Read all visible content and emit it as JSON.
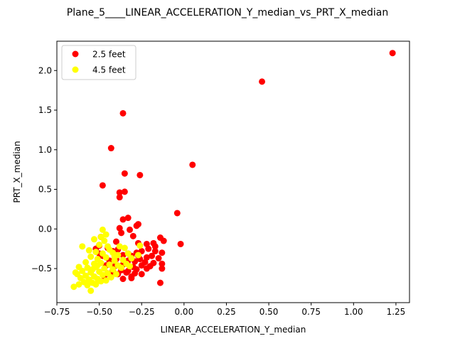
{
  "chart_data": {
    "type": "scatter",
    "title": "Plane_5____LINEAR_ACCELERATION_Y_median_vs_PRT_X_median",
    "xlabel": "LINEAR_ACCELERATION_Y_median",
    "ylabel": "PRT_X_median",
    "xlim": [
      -0.75,
      1.33
    ],
    "ylim": [
      -0.93,
      2.37
    ],
    "x_ticks": [
      -0.75,
      -0.5,
      -0.25,
      0.0,
      0.25,
      0.5,
      0.75,
      1.0,
      1.25
    ],
    "x_tick_labels": [
      "−0.75",
      "−0.50",
      "−0.25",
      "0.00",
      "0.25",
      "0.50",
      "0.75",
      "1.00",
      "1.25"
    ],
    "y_ticks": [
      -0.5,
      0.0,
      0.5,
      1.0,
      1.5,
      2.0
    ],
    "y_tick_labels": [
      "−0.5",
      "0.0",
      "0.5",
      "1.0",
      "1.5",
      "2.0"
    ],
    "grid": false,
    "legend_position": "top-left",
    "series": [
      {
        "name": "2.5 feet",
        "color": "#ff0000",
        "points": [
          [
            1.23,
            2.22
          ],
          [
            0.46,
            1.86
          ],
          [
            -0.36,
            1.46
          ],
          [
            -0.43,
            1.02
          ],
          [
            0.05,
            0.81
          ],
          [
            -0.35,
            0.7
          ],
          [
            -0.26,
            0.68
          ],
          [
            -0.48,
            0.55
          ],
          [
            -0.35,
            0.47
          ],
          [
            -0.38,
            0.46
          ],
          [
            -0.38,
            0.4
          ],
          [
            -0.04,
            0.2
          ],
          [
            -0.33,
            0.14
          ],
          [
            -0.36,
            0.12
          ],
          [
            -0.27,
            0.06
          ],
          [
            -0.28,
            0.04
          ],
          [
            -0.38,
            0.01
          ],
          [
            -0.32,
            -0.01
          ],
          [
            -0.37,
            -0.05
          ],
          [
            -0.3,
            -0.09
          ],
          [
            -0.02,
            -0.19
          ],
          [
            -0.14,
            -0.11
          ],
          [
            -0.12,
            -0.15
          ],
          [
            -0.18,
            -0.18
          ],
          [
            -0.22,
            -0.19
          ],
          [
            -0.4,
            -0.16
          ],
          [
            -0.49,
            -0.1
          ],
          [
            -0.27,
            -0.18
          ],
          [
            -0.25,
            -0.28
          ],
          [
            -0.17,
            -0.22
          ],
          [
            -0.21,
            -0.25
          ],
          [
            -0.17,
            -0.28
          ],
          [
            -0.13,
            -0.3
          ],
          [
            -0.28,
            -0.3
          ],
          [
            -0.33,
            -0.31
          ],
          [
            -0.39,
            -0.26
          ],
          [
            -0.42,
            -0.28
          ],
          [
            -0.45,
            -0.24
          ],
          [
            -0.5,
            -0.21
          ],
          [
            -0.52,
            -0.25
          ],
          [
            -0.31,
            -0.34
          ],
          [
            -0.36,
            -0.33
          ],
          [
            -0.22,
            -0.36
          ],
          [
            -0.26,
            -0.38
          ],
          [
            -0.19,
            -0.34
          ],
          [
            -0.15,
            -0.37
          ],
          [
            -0.4,
            -0.38
          ],
          [
            -0.44,
            -0.4
          ],
          [
            -0.48,
            -0.34
          ],
          [
            -0.33,
            -0.4
          ],
          [
            -0.29,
            -0.41
          ],
          [
            -0.23,
            -0.42
          ],
          [
            -0.18,
            -0.43
          ],
          [
            -0.13,
            -0.44
          ],
          [
            -0.25,
            -0.46
          ],
          [
            -0.2,
            -0.47
          ],
          [
            -0.36,
            -0.45
          ],
          [
            -0.41,
            -0.47
          ],
          [
            -0.46,
            -0.46
          ],
          [
            -0.3,
            -0.48
          ],
          [
            -0.13,
            -0.5
          ],
          [
            -0.22,
            -0.5
          ],
          [
            -0.37,
            -0.52
          ],
          [
            -0.33,
            -0.53
          ],
          [
            -0.28,
            -0.51
          ],
          [
            -0.42,
            -0.52
          ],
          [
            -0.45,
            -0.56
          ],
          [
            -0.39,
            -0.57
          ],
          [
            -0.34,
            -0.55
          ],
          [
            -0.29,
            -0.56
          ],
          [
            -0.25,
            -0.57
          ],
          [
            -0.31,
            -0.6
          ],
          [
            -0.43,
            -0.59
          ],
          [
            -0.36,
            -0.63
          ],
          [
            -0.31,
            -0.62
          ],
          [
            -0.14,
            -0.68
          ],
          [
            -0.47,
            -0.6
          ],
          [
            -0.5,
            -0.31
          ],
          [
            -0.27,
            -0.34
          ],
          [
            -0.35,
            -0.42
          ]
        ]
      },
      {
        "name": "4.5 feet",
        "color": "#ffff00",
        "points": [
          [
            -0.48,
            -0.01
          ],
          [
            -0.46,
            -0.07
          ],
          [
            -0.49,
            -0.1
          ],
          [
            -0.53,
            -0.13
          ],
          [
            -0.47,
            -0.15
          ],
          [
            -0.38,
            -0.22
          ],
          [
            -0.35,
            -0.24
          ],
          [
            -0.26,
            -0.21
          ],
          [
            -0.6,
            -0.22
          ],
          [
            -0.5,
            -0.2
          ],
          [
            -0.45,
            -0.22
          ],
          [
            -0.56,
            -0.27
          ],
          [
            -0.52,
            -0.29
          ],
          [
            -0.48,
            -0.31
          ],
          [
            -0.42,
            -0.3
          ],
          [
            -0.39,
            -0.33
          ],
          [
            -0.33,
            -0.31
          ],
          [
            -0.27,
            -0.33
          ],
          [
            -0.55,
            -0.35
          ],
          [
            -0.51,
            -0.38
          ],
          [
            -0.46,
            -0.36
          ],
          [
            -0.41,
            -0.4
          ],
          [
            -0.36,
            -0.39
          ],
          [
            -0.31,
            -0.37
          ],
          [
            -0.58,
            -0.42
          ],
          [
            -0.53,
            -0.44
          ],
          [
            -0.49,
            -0.43
          ],
          [
            -0.44,
            -0.45
          ],
          [
            -0.39,
            -0.46
          ],
          [
            -0.34,
            -0.44
          ],
          [
            -0.62,
            -0.48
          ],
          [
            -0.57,
            -0.49
          ],
          [
            -0.52,
            -0.48
          ],
          [
            -0.47,
            -0.5
          ],
          [
            -0.42,
            -0.51
          ],
          [
            -0.37,
            -0.49
          ],
          [
            -0.32,
            -0.47
          ],
          [
            -0.6,
            -0.53
          ],
          [
            -0.55,
            -0.55
          ],
          [
            -0.5,
            -0.54
          ],
          [
            -0.45,
            -0.56
          ],
          [
            -0.4,
            -0.57
          ],
          [
            -0.63,
            -0.57
          ],
          [
            -0.58,
            -0.59
          ],
          [
            -0.53,
            -0.6
          ],
          [
            -0.48,
            -0.58
          ],
          [
            -0.43,
            -0.61
          ],
          [
            -0.61,
            -0.62
          ],
          [
            -0.56,
            -0.64
          ],
          [
            -0.51,
            -0.63
          ],
          [
            -0.46,
            -0.65
          ],
          [
            -0.59,
            -0.67
          ],
          [
            -0.54,
            -0.68
          ],
          [
            -0.49,
            -0.66
          ],
          [
            -0.62,
            -0.7
          ],
          [
            -0.57,
            -0.71
          ],
          [
            -0.52,
            -0.7
          ],
          [
            -0.65,
            -0.73
          ],
          [
            -0.55,
            -0.78
          ],
          [
            -0.64,
            -0.55
          ],
          [
            -0.44,
            -0.26
          ],
          [
            -0.51,
            -0.46
          ],
          [
            -0.41,
            -0.35
          ],
          [
            -0.54,
            -0.51
          ]
        ]
      }
    ]
  }
}
